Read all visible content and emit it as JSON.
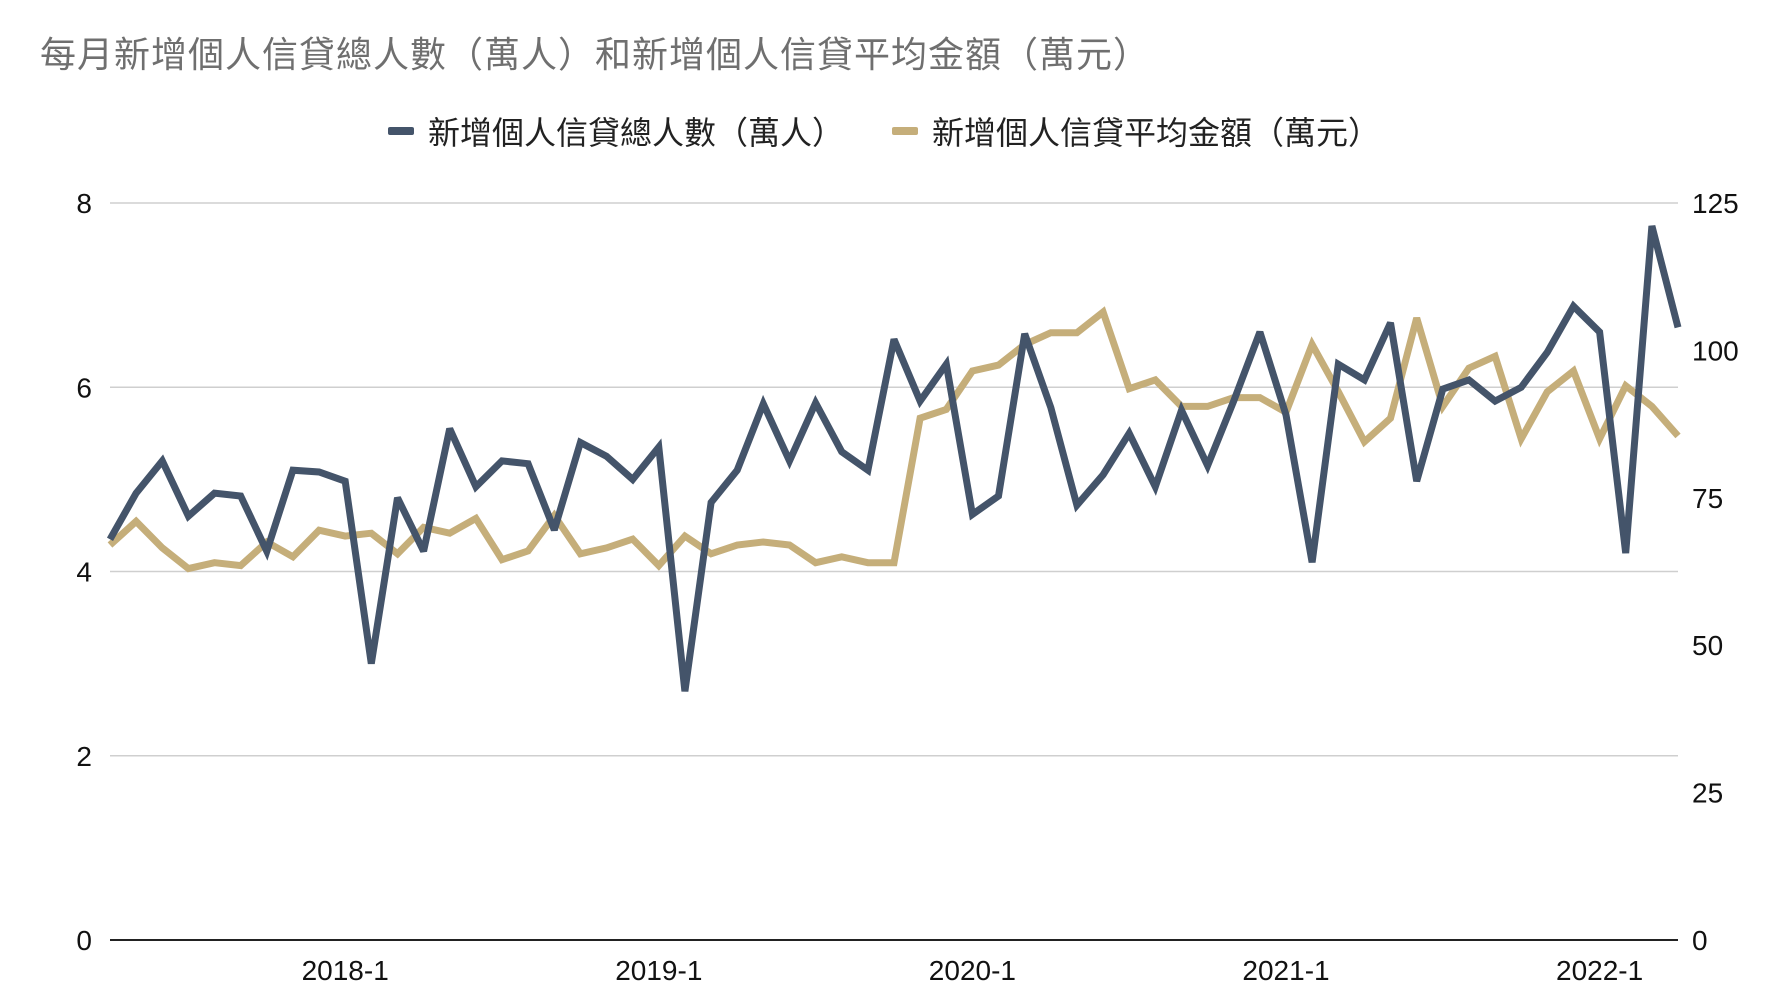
{
  "chart_data": {
    "type": "line",
    "title": "每月新增個人信貸總人數（萬人）和新增個人信貸平均金額（萬元）",
    "x_tick_labels": [
      "2018-1",
      "2019-1",
      "2020-1",
      "2021-1",
      "2022-1"
    ],
    "x_tick_index": [
      9,
      21,
      33,
      45,
      57
    ],
    "y_left": {
      "ticks": [
        0,
        2,
        4,
        6,
        8
      ],
      "range": [
        0,
        8
      ]
    },
    "y_right": {
      "ticks": [
        0,
        25,
        50,
        75,
        100,
        125
      ],
      "range": [
        0,
        125
      ]
    },
    "grid": true,
    "legend_position": "top",
    "series": [
      {
        "name": "新增個人信貸總人數（萬人）",
        "axis": "left",
        "color": "#44546a",
        "values": [
          4.35,
          4.85,
          5.2,
          4.6,
          4.85,
          4.82,
          4.22,
          5.1,
          5.08,
          4.98,
          3.0,
          4.8,
          4.22,
          5.55,
          4.92,
          5.2,
          5.17,
          4.45,
          5.4,
          5.25,
          5.0,
          5.35,
          2.7,
          4.75,
          5.1,
          5.82,
          5.2,
          5.83,
          5.3,
          5.1,
          6.52,
          5.85,
          6.25,
          4.62,
          4.82,
          6.58,
          5.78,
          4.72,
          5.05,
          5.5,
          4.92,
          5.75,
          5.15,
          5.85,
          6.6,
          5.7,
          4.1,
          6.25,
          6.08,
          6.7,
          4.98,
          5.98,
          6.08,
          5.85,
          6.0,
          6.38,
          6.88,
          6.6,
          4.2,
          7.75,
          6.65
        ]
      },
      {
        "name": "新增個人信貸平均金額（萬元）",
        "axis": "right",
        "color": "#c5ae7a",
        "values": [
          67,
          71,
          66.5,
          63,
          64,
          63.5,
          67.5,
          65,
          69.5,
          68.5,
          69,
          65.5,
          70,
          69,
          71.5,
          64.5,
          66,
          72,
          65.5,
          66.5,
          68,
          63.5,
          68.5,
          65.5,
          67,
          67.5,
          67,
          64,
          65,
          64,
          64,
          88.5,
          90,
          96.5,
          97.5,
          101,
          103,
          103,
          106.5,
          93.5,
          95,
          90.5,
          90.5,
          92,
          92,
          89.5,
          101,
          93,
          84.5,
          88.5,
          105.5,
          90.5,
          97,
          99,
          85,
          93,
          96.5,
          85,
          94,
          90.5,
          85.5
        ]
      }
    ]
  }
}
